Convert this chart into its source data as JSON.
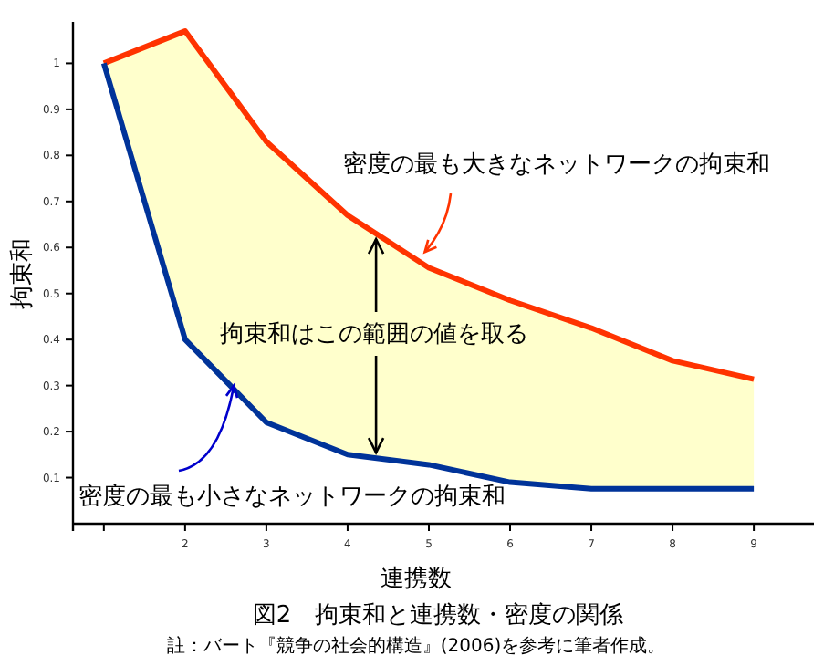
{
  "chart_data": {
    "type": "line",
    "title": "図2　拘束和と連携数・密度の関係",
    "xlabel": "連携数",
    "ylabel": "拘束和",
    "x": [
      1,
      2,
      3,
      4,
      5,
      6,
      7,
      8,
      9
    ],
    "series": [
      {
        "type": "line",
        "color": "#ff3300",
        "values": [
          1.0,
          1.07,
          0.83,
          0.67,
          0.556,
          0.485,
          0.425,
          0.354,
          0.314
        ],
        "lower": [
          1.0,
          0.4,
          0.22,
          0.15,
          0.128,
          0.09,
          0.076,
          0.076,
          0.076
        ],
        "upper": [
          1.0,
          1.07,
          0.83,
          0.67,
          0.556,
          0.485,
          0.425,
          0.354,
          0.314
        ]
      },
      {
        "type": "line",
        "color": "#003399",
        "values": [
          1.0,
          0.4,
          0.22,
          0.15,
          0.128,
          0.09,
          0.076,
          0.076,
          0.076
        ]
      }
    ],
    "xlim": [
      0.62,
      9.74
    ],
    "ylim": [
      0,
      1.09
    ],
    "xticks": [
      {
        "value": 1,
        "label": null
      },
      2,
      3,
      4,
      5,
      6,
      7,
      8,
      9
    ],
    "yticks": [
      0.1,
      0.2,
      0.3,
      0.4,
      0.5,
      0.6,
      0.7,
      0.8,
      0.9,
      1
    ],
    "grid": false,
    "marker": "none",
    "line_style": "solid",
    "annotations": [
      {
        "text": "密度の最も大きなネットワークの拘束和",
        "x": 4.95,
        "y": 0.59
      },
      {
        "text": "密度の最も小さなネットワークの拘束和",
        "x": 2.6,
        "y": 0.3
      },
      {
        "text": "拘束和はこの範囲の値を取る",
        "x": 4.35,
        "y": 0.63
      },
      "註：バート『競争の社会的構造』(2006)を参考に筆者作成。"
    ]
  }
}
